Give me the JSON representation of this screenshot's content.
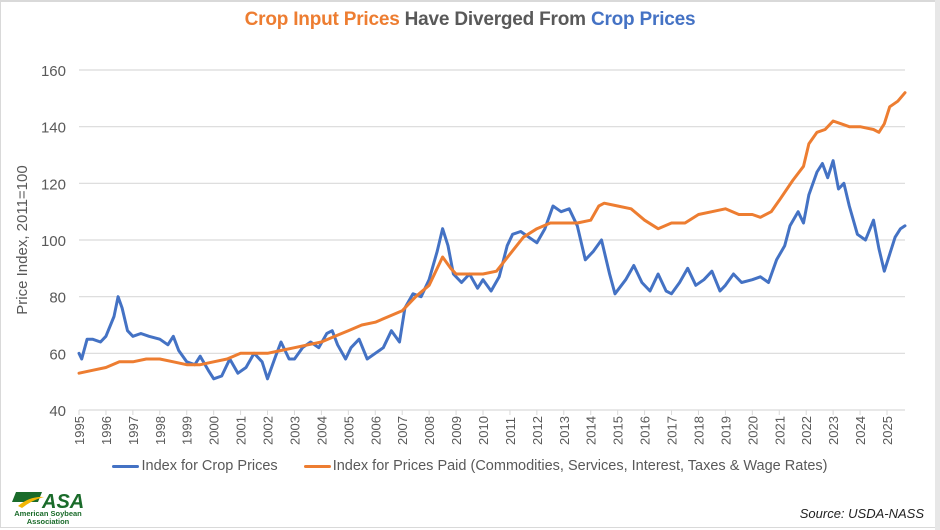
{
  "title": {
    "part1": "Crop Input Prices",
    "part2": " Have Diverged From ",
    "part3": "Crop Prices"
  },
  "colors": {
    "crop": "#4472c4",
    "paid": "#ed7d31",
    "grid": "#d9d9d9",
    "text": "#595959",
    "logo_green": "#1a6b2a",
    "logo_yellow": "#f2b705"
  },
  "logo": {
    "mark": "ASA",
    "line1": "American Soybean",
    "line2": "Association"
  },
  "source": "Source: USDA-NASS",
  "chart_data": {
    "type": "line",
    "title": "Crop Input Prices Have Diverged From Crop Prices",
    "xlabel": "",
    "ylabel": "Price Index, 2011=100",
    "ylim": [
      40,
      160
    ],
    "yticks": [
      40,
      60,
      80,
      100,
      120,
      140,
      160
    ],
    "xlim": [
      1995,
      2025.67
    ],
    "xticks": [
      "1995",
      "1996",
      "1997",
      "1998",
      "1999",
      "2000",
      "2001",
      "2002",
      "2003",
      "2004",
      "2005",
      "2006",
      "2007",
      "2008",
      "2009",
      "2010",
      "2011",
      "2012",
      "2013",
      "2014",
      "2015",
      "2016",
      "2017",
      "2018",
      "2019",
      "2020",
      "2021",
      "2022",
      "2023",
      "2024",
      "2025"
    ],
    "grid": true,
    "legend": "bottom",
    "series": [
      {
        "name": "Index for Crop Prices",
        "color": "#4472c4",
        "x": [
          1995.0,
          1995.1,
          1995.3,
          1995.5,
          1995.8,
          1996.0,
          1996.3,
          1996.45,
          1996.6,
          1996.8,
          1997.0,
          1997.3,
          1997.6,
          1998.0,
          1998.3,
          1998.5,
          1998.7,
          1999.0,
          1999.3,
          1999.5,
          1999.8,
          2000.0,
          2000.3,
          2000.6,
          2000.9,
          2001.2,
          2001.5,
          2001.8,
          2002.0,
          2002.3,
          2002.5,
          2002.8,
          2003.0,
          2003.3,
          2003.6,
          2003.9,
          2004.2,
          2004.4,
          2004.6,
          2004.9,
          2005.1,
          2005.4,
          2005.7,
          2006.0,
          2006.3,
          2006.6,
          2006.9,
          2007.1,
          2007.4,
          2007.7,
          2008.0,
          2008.3,
          2008.5,
          2008.7,
          2008.9,
          2009.2,
          2009.5,
          2009.8,
          2010.0,
          2010.3,
          2010.6,
          2010.9,
          2011.1,
          2011.4,
          2011.7,
          2012.0,
          2012.3,
          2012.6,
          2012.9,
          2013.2,
          2013.5,
          2013.8,
          2014.1,
          2014.4,
          2014.7,
          2014.9,
          2015.3,
          2015.6,
          2015.9,
          2016.2,
          2016.5,
          2016.8,
          2017.0,
          2017.3,
          2017.6,
          2017.9,
          2018.2,
          2018.5,
          2018.8,
          2019.0,
          2019.3,
          2019.6,
          2020.0,
          2020.3,
          2020.6,
          2020.9,
          2021.2,
          2021.4,
          2021.7,
          2021.9,
          2022.1,
          2022.4,
          2022.6,
          2022.8,
          2023.0,
          2023.2,
          2023.4,
          2023.6,
          2023.9,
          2024.2,
          2024.5,
          2024.7,
          2024.9,
          2025.1,
          2025.3,
          2025.5,
          2025.67
        ],
        "values": [
          60,
          58,
          65,
          65,
          64,
          66,
          73,
          80,
          76,
          68,
          66,
          67,
          66,
          65,
          63,
          66,
          61,
          57,
          56,
          59,
          54,
          51,
          52,
          58,
          53,
          55,
          60,
          57,
          51,
          59,
          64,
          58,
          58,
          62,
          64,
          62,
          67,
          68,
          63,
          58,
          62,
          65,
          58,
          60,
          62,
          68,
          64,
          76,
          81,
          80,
          86,
          96,
          104,
          98,
          88,
          85,
          88,
          83,
          86,
          82,
          87,
          98,
          102,
          103,
          101,
          99,
          104,
          112,
          110,
          111,
          105,
          93,
          96,
          100,
          88,
          81,
          86,
          91,
          85,
          82,
          88,
          82,
          81,
          85,
          90,
          84,
          86,
          89,
          82,
          84,
          88,
          85,
          86,
          87,
          85,
          93,
          98,
          105,
          110,
          106,
          116,
          124,
          127,
          122,
          128,
          118,
          120,
          112,
          102,
          100,
          107,
          97,
          89,
          95,
          101,
          104,
          105
        ]
      },
      {
        "name": "Index for Prices Paid (Commodities, Services, Interest, Taxes & Wage Rates)",
        "color": "#ed7d31",
        "x": [
          1995.0,
          1995.5,
          1996.0,
          1996.5,
          1997.0,
          1997.5,
          1998.0,
          1998.5,
          1999.0,
          1999.5,
          2000.0,
          2000.5,
          2001.0,
          2001.5,
          2002.0,
          2002.5,
          2003.0,
          2003.5,
          2004.0,
          2004.5,
          2005.0,
          2005.5,
          2006.0,
          2006.5,
          2007.0,
          2007.5,
          2008.0,
          2008.5,
          2008.8,
          2009.0,
          2009.5,
          2010.0,
          2010.5,
          2011.0,
          2011.5,
          2012.0,
          2012.5,
          2013.0,
          2013.5,
          2014.0,
          2014.3,
          2014.5,
          2015.0,
          2015.5,
          2016.0,
          2016.5,
          2017.0,
          2017.5,
          2018.0,
          2018.5,
          2019.0,
          2019.5,
          2020.0,
          2020.3,
          2020.7,
          2021.0,
          2021.5,
          2021.9,
          2022.1,
          2022.4,
          2022.7,
          2023.0,
          2023.3,
          2023.6,
          2024.0,
          2024.5,
          2024.7,
          2024.9,
          2025.1,
          2025.4,
          2025.67
        ],
        "values": [
          53,
          54,
          55,
          57,
          57,
          58,
          58,
          57,
          56,
          56,
          57,
          58,
          60,
          60,
          60,
          61,
          62,
          63,
          64,
          66,
          68,
          70,
          71,
          73,
          75,
          80,
          84,
          94,
          90,
          88,
          88,
          88,
          89,
          95,
          101,
          104,
          106,
          106,
          106,
          107,
          112,
          113,
          112,
          111,
          107,
          104,
          106,
          106,
          109,
          110,
          111,
          109,
          109,
          108,
          110,
          114,
          121,
          126,
          134,
          138,
          139,
          142,
          141,
          140,
          140,
          139,
          138,
          141,
          147,
          149,
          152
        ]
      }
    ]
  }
}
